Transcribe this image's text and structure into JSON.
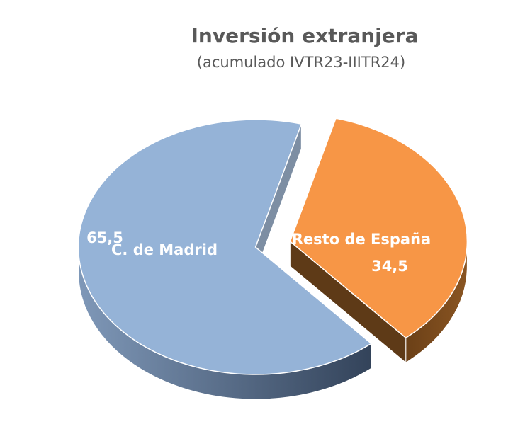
{
  "chart_data": {
    "type": "pie",
    "title": "Inversión extranjera",
    "subtitle": "(acumulado IVTR23-IIITR24)",
    "categories": [
      "C. de Madrid",
      "Resto de España"
    ],
    "values": [
      65.5,
      34.5
    ],
    "value_labels": [
      "65,5",
      "34,5"
    ],
    "colors": [
      "#95b3d7",
      "#f79646"
    ]
  }
}
